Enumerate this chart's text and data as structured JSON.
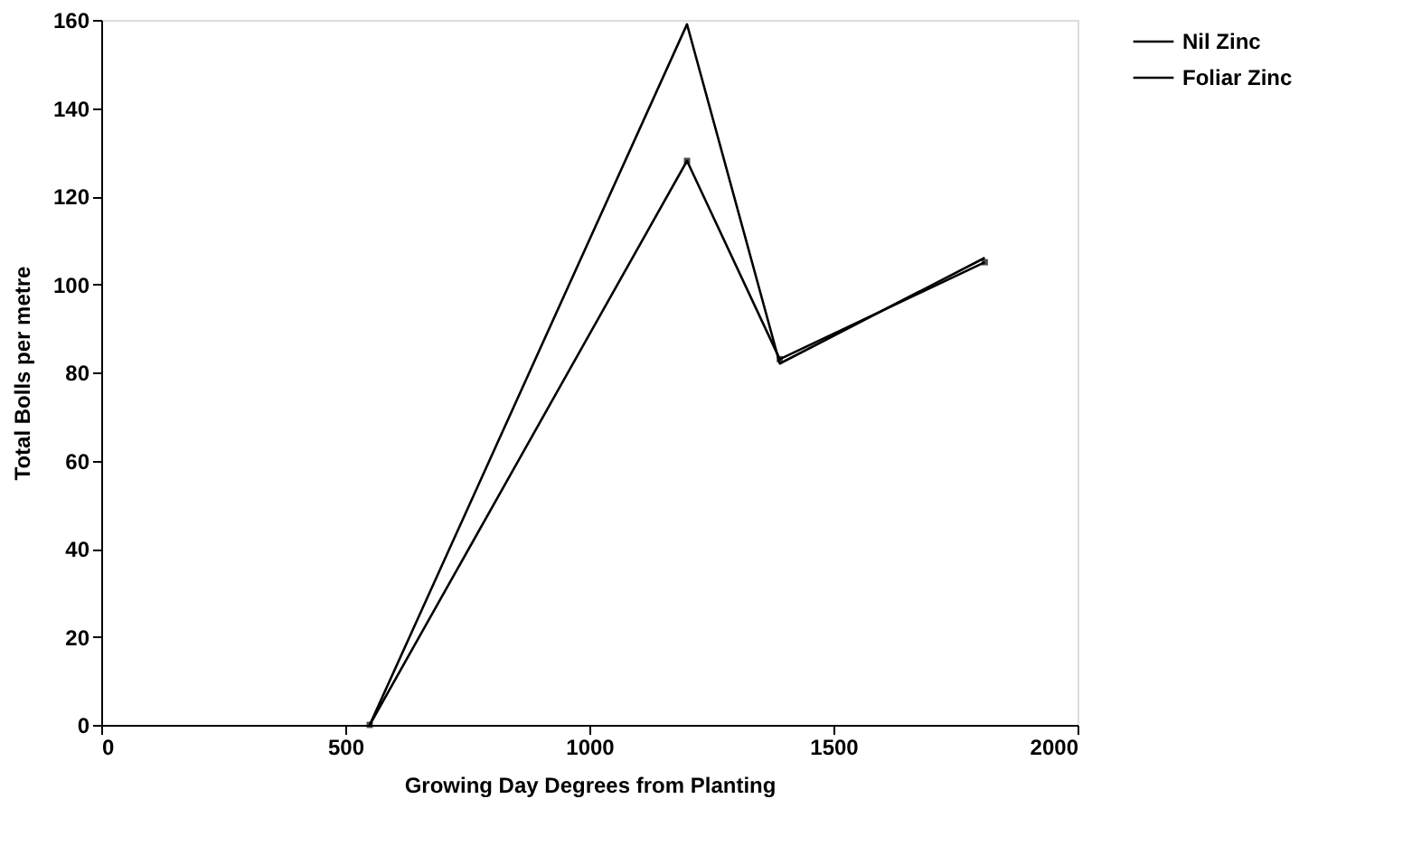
{
  "chart_data": {
    "type": "line",
    "xlabel": "Growing Day Degrees from Planting",
    "ylabel": "Total Bolls per metre",
    "x": [
      550,
      1200,
      1390,
      1810
    ],
    "series": [
      {
        "name": "Nil Zinc",
        "color": "#000000",
        "values": [
          0,
          128,
          83,
          105
        ],
        "marker": "square"
      },
      {
        "name": "Foliar Zinc",
        "color": "#000000",
        "values": [
          0,
          159,
          82,
          106
        ]
      }
    ],
    "xlim": [
      0,
      2000
    ],
    "xticks": [
      0,
      500,
      1000,
      1500,
      2000
    ],
    "ylim": [
      0,
      160
    ],
    "yticks": [
      0,
      20,
      40,
      60,
      80,
      100,
      120,
      140,
      160
    ],
    "grid": false,
    "legend": "right",
    "line_style": "solid"
  }
}
